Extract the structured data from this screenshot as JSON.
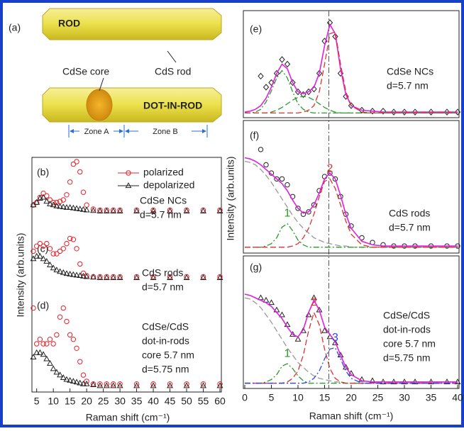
{
  "diagram": {
    "label": "(a)",
    "rod": "ROD",
    "core": "CdSe core",
    "shell": "CdS rod",
    "dot_in_rod": "DOT-IN-ROD",
    "zone_a": "Zone A",
    "zone_b": "Zone B"
  },
  "chart_data": [
    {
      "type": "line",
      "panel_label": "(b)",
      "annotation": [
        "CdSe NCs",
        "d=5.7 nm"
      ],
      "x": [
        4,
        5,
        6,
        7,
        8,
        9,
        10,
        11,
        12,
        13,
        14,
        15,
        16,
        17,
        18,
        19,
        20,
        22,
        24,
        26,
        28,
        30,
        35,
        40,
        45,
        50,
        55,
        60
      ],
      "xlim": [
        4,
        60
      ],
      "ylim": [
        0,
        1
      ],
      "series": [
        {
          "name": "polarized",
          "color": "#e8202a",
          "marker": "circle",
          "values": [
            0.15,
            0.2,
            0.3,
            0.38,
            0.33,
            0.25,
            0.2,
            0.2,
            0.22,
            0.25,
            0.35,
            0.6,
            0.95,
            1.0,
            0.8,
            0.4,
            0.15,
            0.07,
            0.05,
            0.05,
            0.05,
            0.05,
            0.05,
            0.05,
            0.05,
            0.05,
            0.05,
            0.05
          ]
        },
        {
          "name": "depolarized",
          "color": "#222222",
          "marker": "triangle",
          "values": [
            0.15,
            0.2,
            0.28,
            0.3,
            0.22,
            0.17,
            0.15,
            0.13,
            0.12,
            0.11,
            0.1,
            0.1,
            0.09,
            0.08,
            0.07,
            0.06,
            0.05,
            0.04,
            0.03,
            0.03,
            0.03,
            0.03,
            0.03,
            0.03,
            0.03,
            0.03,
            0.03,
            0.03
          ]
        }
      ]
    },
    {
      "type": "line",
      "panel_label": "(c)",
      "annotation": [
        "CdS rods",
        "d=5.7 nm"
      ],
      "y_label": "Intensity (arb.units)",
      "x": [
        4,
        5,
        6,
        7,
        8,
        9,
        10,
        11,
        12,
        13,
        14,
        15,
        16,
        17,
        18,
        19,
        20,
        22,
        24,
        26,
        28,
        30,
        35,
        40,
        45,
        50,
        55,
        60
      ],
      "xlim": [
        4,
        60
      ],
      "ylim": [
        0,
        1
      ],
      "series": [
        {
          "color": "#e8202a",
          "marker": "circle",
          "values": [
            0.55,
            0.65,
            0.7,
            0.65,
            0.7,
            0.6,
            0.5,
            0.5,
            0.55,
            0.6,
            0.7,
            0.8,
            0.78,
            0.6,
            0.3,
            0.12,
            0.07,
            0.05,
            0.05,
            0.05,
            0.05,
            0.05,
            0.05,
            0.05,
            0.05,
            0.05,
            0.05,
            0.05
          ]
        },
        {
          "color": "#222222",
          "marker": "triangle",
          "values": [
            0.4,
            0.45,
            0.45,
            0.4,
            0.35,
            0.28,
            0.22,
            0.18,
            0.15,
            0.13,
            0.11,
            0.1,
            0.09,
            0.08,
            0.07,
            0.06,
            0.05,
            0.04,
            0.03,
            0.03,
            0.03,
            0.03,
            0.03,
            0.03,
            0.03,
            0.03,
            0.03,
            0.03
          ]
        }
      ]
    },
    {
      "type": "line",
      "panel_label": "(d)",
      "annotation": [
        "CdSe/CdS",
        "dot-in-rods",
        "core 5.7 nm",
        "d=5.75 nm"
      ],
      "x_label": "Raman shift (cm⁻¹)",
      "x": [
        4,
        5,
        6,
        7,
        8,
        9,
        10,
        11,
        12,
        13,
        14,
        15,
        16,
        17,
        18,
        19,
        20,
        22,
        24,
        26,
        28,
        30,
        35,
        40,
        45,
        50,
        55,
        60
      ],
      "xlim": [
        4,
        60
      ],
      "xticks": [
        5,
        10,
        15,
        20,
        25,
        30,
        35,
        40,
        45,
        50,
        55,
        60
      ],
      "ylim": [
        0,
        1
      ],
      "series": [
        {
          "color": "#e8202a",
          "marker": "circle",
          "values": [
            0.9,
            0.5,
            0.55,
            0.5,
            0.5,
            0.55,
            0.5,
            0.6,
            0.8,
            0.9,
            0.75,
            0.6,
            0.55,
            0.45,
            0.3,
            0.15,
            0.08,
            0.05,
            0.05,
            0.05,
            0.05,
            0.05,
            0.05,
            0.05,
            0.05,
            0.05,
            0.05,
            0.05
          ]
        },
        {
          "color": "#222222",
          "marker": "triangle",
          "values": [
            0.35,
            0.4,
            0.4,
            0.38,
            0.33,
            0.28,
            0.22,
            0.18,
            0.15,
            0.12,
            0.1,
            0.09,
            0.08,
            0.07,
            0.06,
            0.05,
            0.05,
            0.04,
            0.03,
            0.03,
            0.03,
            0.03,
            0.03,
            0.03,
            0.03,
            0.03,
            0.03,
            0.03
          ]
        }
      ]
    },
    {
      "type": "line",
      "panel_label": "(e)",
      "annotation": [
        "CdSe NCs",
        "d=5.7 nm"
      ],
      "reference_x": 15.8,
      "x": [
        0,
        1,
        2,
        3,
        4,
        5,
        6,
        7,
        8,
        9,
        10,
        11,
        12,
        13,
        14,
        15,
        16,
        17,
        18,
        19,
        20,
        22,
        24,
        26,
        28,
        30,
        32,
        35,
        38,
        40
      ],
      "xlim": [
        0,
        40
      ],
      "ylim": [
        0,
        1
      ],
      "series": [
        {
          "color": "#222222",
          "marker": "diamond",
          "values": [
            null,
            null,
            null,
            0.42,
            0.3,
            0.35,
            0.45,
            0.6,
            0.55,
            0.35,
            0.25,
            0.22,
            0.25,
            0.28,
            0.45,
            0.8,
            1.0,
            0.85,
            0.45,
            0.2,
            0.1,
            0.05,
            0.04,
            0.04,
            0.03,
            0.03,
            0.03,
            0.03,
            0.03,
            0.03
          ]
        },
        {
          "color": "#e020e0",
          "style": "solid",
          "values": [
            0.03,
            0.04,
            0.06,
            0.1,
            0.18,
            0.3,
            0.45,
            0.55,
            0.5,
            0.35,
            0.25,
            0.23,
            0.25,
            0.3,
            0.45,
            0.75,
            0.98,
            0.88,
            0.5,
            0.22,
            0.1,
            0.05,
            0.04,
            0.03,
            0.03,
            0.03,
            0.03,
            0.03,
            0.03,
            0.03
          ]
        },
        {
          "color": "#2a9a2a",
          "style": "dashdot",
          "values": [
            0.02,
            0.02,
            0.03,
            0.06,
            0.14,
            0.26,
            0.4,
            0.48,
            0.4,
            0.25,
            0.12,
            0.06,
            0.03,
            0.02,
            0.02,
            0.02,
            0.02,
            0.02,
            0.02,
            0.02,
            0.02,
            0.02,
            0.02,
            0.02,
            0.02,
            0.02,
            0.02,
            0.02,
            0.02,
            0.02
          ]
        },
        {
          "color": "#2a9a2a",
          "style": "dashed",
          "values": [
            0.02,
            0.02,
            0.02,
            0.02,
            0.02,
            0.03,
            0.05,
            0.08,
            0.12,
            0.16,
            0.19,
            0.2,
            0.19,
            0.16,
            0.12,
            0.08,
            0.05,
            0.03,
            0.02,
            0.02,
            0.02,
            0.02,
            0.02,
            0.02,
            0.02,
            0.02,
            0.02,
            0.02,
            0.02,
            0.02
          ]
        },
        {
          "color": "#e03030",
          "style": "dashed",
          "values": [
            0.02,
            0.02,
            0.02,
            0.02,
            0.02,
            0.02,
            0.02,
            0.02,
            0.02,
            0.02,
            0.02,
            0.03,
            0.05,
            0.1,
            0.25,
            0.55,
            0.88,
            0.9,
            0.55,
            0.25,
            0.1,
            0.03,
            0.02,
            0.02,
            0.02,
            0.02,
            0.02,
            0.02,
            0.02,
            0.02
          ]
        }
      ]
    },
    {
      "type": "line",
      "panel_label": "(f)",
      "annotation": [
        "CdS rods",
        "d=5.7 nm"
      ],
      "y_label": "Intensity (arb.units)",
      "x": [
        0,
        1,
        2,
        3,
        4,
        5,
        6,
        7,
        8,
        9,
        10,
        11,
        12,
        13,
        14,
        15,
        16,
        17,
        18,
        19,
        20,
        22,
        24,
        26,
        28,
        30,
        32,
        35,
        38,
        40
      ],
      "xlim": [
        0,
        40
      ],
      "ylim": [
        0,
        1
      ],
      "series": [
        {
          "color": "#222222",
          "marker": "circle",
          "values": [
            null,
            null,
            null,
            0.85,
            0.72,
            0.65,
            0.6,
            0.6,
            0.55,
            0.45,
            0.35,
            0.3,
            0.32,
            0.38,
            0.5,
            0.62,
            0.65,
            0.6,
            0.45,
            0.3,
            0.2,
            0.1,
            0.06,
            0.04,
            0.03,
            0.03,
            0.03,
            0.03,
            0.03,
            0.03
          ]
        },
        {
          "color": "#e020e0",
          "style": "solid",
          "values": [
            0.78,
            0.77,
            0.75,
            0.72,
            0.68,
            0.64,
            0.6,
            0.56,
            0.5,
            0.42,
            0.35,
            0.31,
            0.32,
            0.38,
            0.48,
            0.6,
            0.65,
            0.6,
            0.46,
            0.3,
            0.18,
            0.07,
            0.04,
            0.03,
            0.03,
            0.03,
            0.03,
            0.03,
            0.03,
            0.03
          ]
        },
        {
          "color": "#999999",
          "style": "dashed",
          "values": [
            0.75,
            0.74,
            0.72,
            0.68,
            0.63,
            0.57,
            0.5,
            0.43,
            0.36,
            0.29,
            0.23,
            0.18,
            0.14,
            0.1,
            0.08,
            0.06,
            0.05,
            0.04,
            0.03,
            0.03,
            0.02,
            0.02,
            0.02,
            0.02,
            0.02,
            0.02,
            0.02,
            0.02,
            0.02,
            0.02
          ]
        },
        {
          "label": "1",
          "color": "#2a9a2a",
          "style": "dashdot",
          "values": [
            0.02,
            0.02,
            0.02,
            0.02,
            0.03,
            0.05,
            0.1,
            0.19,
            0.22,
            0.16,
            0.08,
            0.04,
            0.02,
            0.02,
            0.02,
            0.02,
            0.02,
            0.02,
            0.02,
            0.02,
            0.02,
            0.02,
            0.02,
            0.02,
            0.02,
            0.02,
            0.02,
            0.02,
            0.02,
            0.02
          ]
        },
        {
          "label": "2",
          "color": "#e03030",
          "style": "dashed",
          "values": [
            0.02,
            0.02,
            0.02,
            0.02,
            0.02,
            0.02,
            0.02,
            0.02,
            0.02,
            0.03,
            0.05,
            0.1,
            0.18,
            0.3,
            0.45,
            0.58,
            0.6,
            0.52,
            0.38,
            0.24,
            0.13,
            0.04,
            0.02,
            0.02,
            0.02,
            0.02,
            0.02,
            0.02,
            0.02,
            0.02
          ]
        }
      ]
    },
    {
      "type": "line",
      "panel_label": "(g)",
      "annotation": [
        "CdSe/CdS",
        "dot-in-rods",
        "core 5.7 nm",
        "d=5.75 nm"
      ],
      "x_label": "Raman shift (cm⁻¹)",
      "x": [
        0,
        1,
        2,
        3,
        4,
        5,
        6,
        7,
        8,
        9,
        10,
        11,
        12,
        13,
        14,
        15,
        16,
        17,
        18,
        19,
        20,
        22,
        24,
        26,
        28,
        30,
        32,
        35,
        38,
        40
      ],
      "xlim": [
        0,
        40
      ],
      "xticks": [
        0,
        5,
        10,
        15,
        20,
        25,
        30,
        35,
        40
      ],
      "ylim": [
        0,
        1
      ],
      "series": [
        {
          "color": "#222222",
          "marker": "triangle",
          "values": [
            null,
            null,
            null,
            0.72,
            0.7,
            0.68,
            0.62,
            0.58,
            0.5,
            0.42,
            0.38,
            0.45,
            0.58,
            0.72,
            0.62,
            0.45,
            0.4,
            0.35,
            0.25,
            0.15,
            0.1,
            0.05,
            0.04,
            0.03,
            0.03,
            0.03,
            0.03,
            0.03,
            0.03,
            0.03
          ]
        },
        {
          "color": "#e020e0",
          "style": "solid",
          "values": [
            0.75,
            0.74,
            0.72,
            0.7,
            0.68,
            0.65,
            0.6,
            0.55,
            0.48,
            0.42,
            0.4,
            0.46,
            0.6,
            0.7,
            0.62,
            0.48,
            0.42,
            0.36,
            0.25,
            0.15,
            0.09,
            0.04,
            0.03,
            0.03,
            0.03,
            0.03,
            0.03,
            0.03,
            0.03,
            0.03
          ]
        },
        {
          "color": "#999999",
          "style": "dashed",
          "values": [
            0.72,
            0.71,
            0.68,
            0.64,
            0.58,
            0.52,
            0.45,
            0.38,
            0.31,
            0.25,
            0.19,
            0.15,
            0.11,
            0.08,
            0.06,
            0.05,
            0.04,
            0.03,
            0.03,
            0.02,
            0.02,
            0.02,
            0.02,
            0.02,
            0.02,
            0.02,
            0.02,
            0.02,
            0.02,
            0.02
          ]
        },
        {
          "label": "1",
          "color": "#2a9a2a",
          "style": "dashdot",
          "values": [
            0.02,
            0.02,
            0.02,
            0.02,
            0.03,
            0.05,
            0.09,
            0.16,
            0.18,
            0.14,
            0.08,
            0.04,
            0.02,
            0.02,
            0.02,
            0.02,
            0.02,
            0.02,
            0.02,
            0.02,
            0.02,
            0.02,
            0.02,
            0.02,
            0.02,
            0.02,
            0.02,
            0.02,
            0.02,
            0.02
          ]
        },
        {
          "label": "2",
          "color": "#e03030",
          "style": "dashed",
          "values": [
            0.02,
            0.02,
            0.02,
            0.02,
            0.02,
            0.02,
            0.02,
            0.02,
            0.03,
            0.06,
            0.12,
            0.25,
            0.45,
            0.6,
            0.5,
            0.3,
            0.14,
            0.06,
            0.03,
            0.02,
            0.02,
            0.02,
            0.02,
            0.02,
            0.02,
            0.02,
            0.02,
            0.02,
            0.02,
            0.02
          ]
        },
        {
          "label": "3",
          "color": "#3344dd",
          "style": "dashdot",
          "values": [
            0.02,
            0.02,
            0.02,
            0.02,
            0.02,
            0.02,
            0.02,
            0.02,
            0.02,
            0.02,
            0.02,
            0.02,
            0.03,
            0.06,
            0.12,
            0.22,
            0.3,
            0.31,
            0.22,
            0.12,
            0.06,
            0.02,
            0.02,
            0.02,
            0.02,
            0.02,
            0.02,
            0.02,
            0.02,
            0.02
          ]
        }
      ]
    }
  ]
}
